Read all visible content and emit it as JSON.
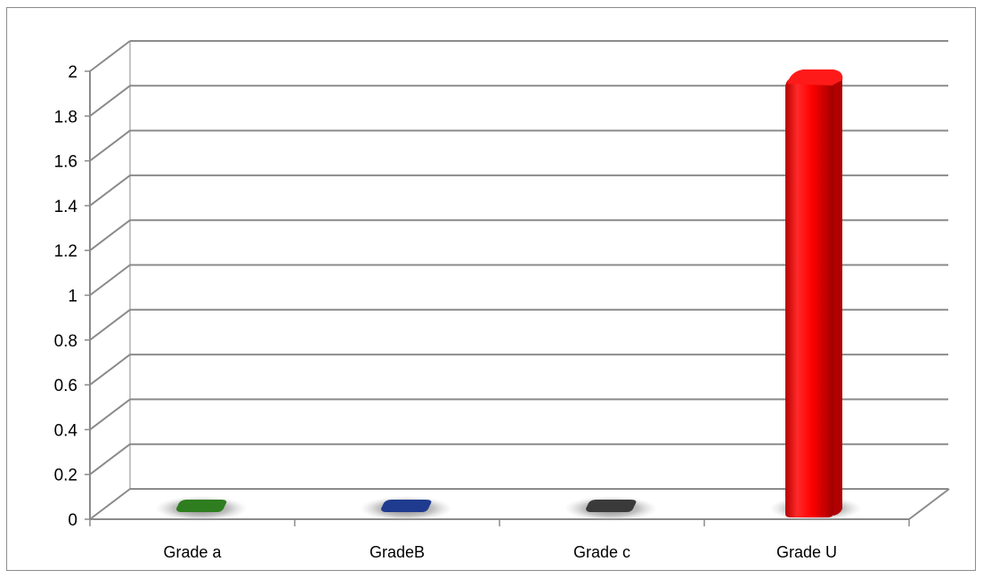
{
  "chart_data": {
    "type": "bar",
    "title": "",
    "xlabel": "",
    "ylabel": "",
    "categories": [
      "Grade a",
      "GradeB",
      "Grade c",
      "Grade U"
    ],
    "values": [
      0,
      0,
      0,
      2
    ],
    "colors": [
      "#2e7d1f",
      "#1f3b8f",
      "#3a3a3a",
      "#ff0000"
    ],
    "ylim": [
      0,
      2
    ],
    "yticks": [
      "0",
      "0.2",
      "0.4",
      "0.6",
      "0.8",
      "1",
      "1.2",
      "1.4",
      "1.6",
      "1.8",
      "2"
    ],
    "grid": true,
    "legend": "none",
    "style": "3d"
  }
}
